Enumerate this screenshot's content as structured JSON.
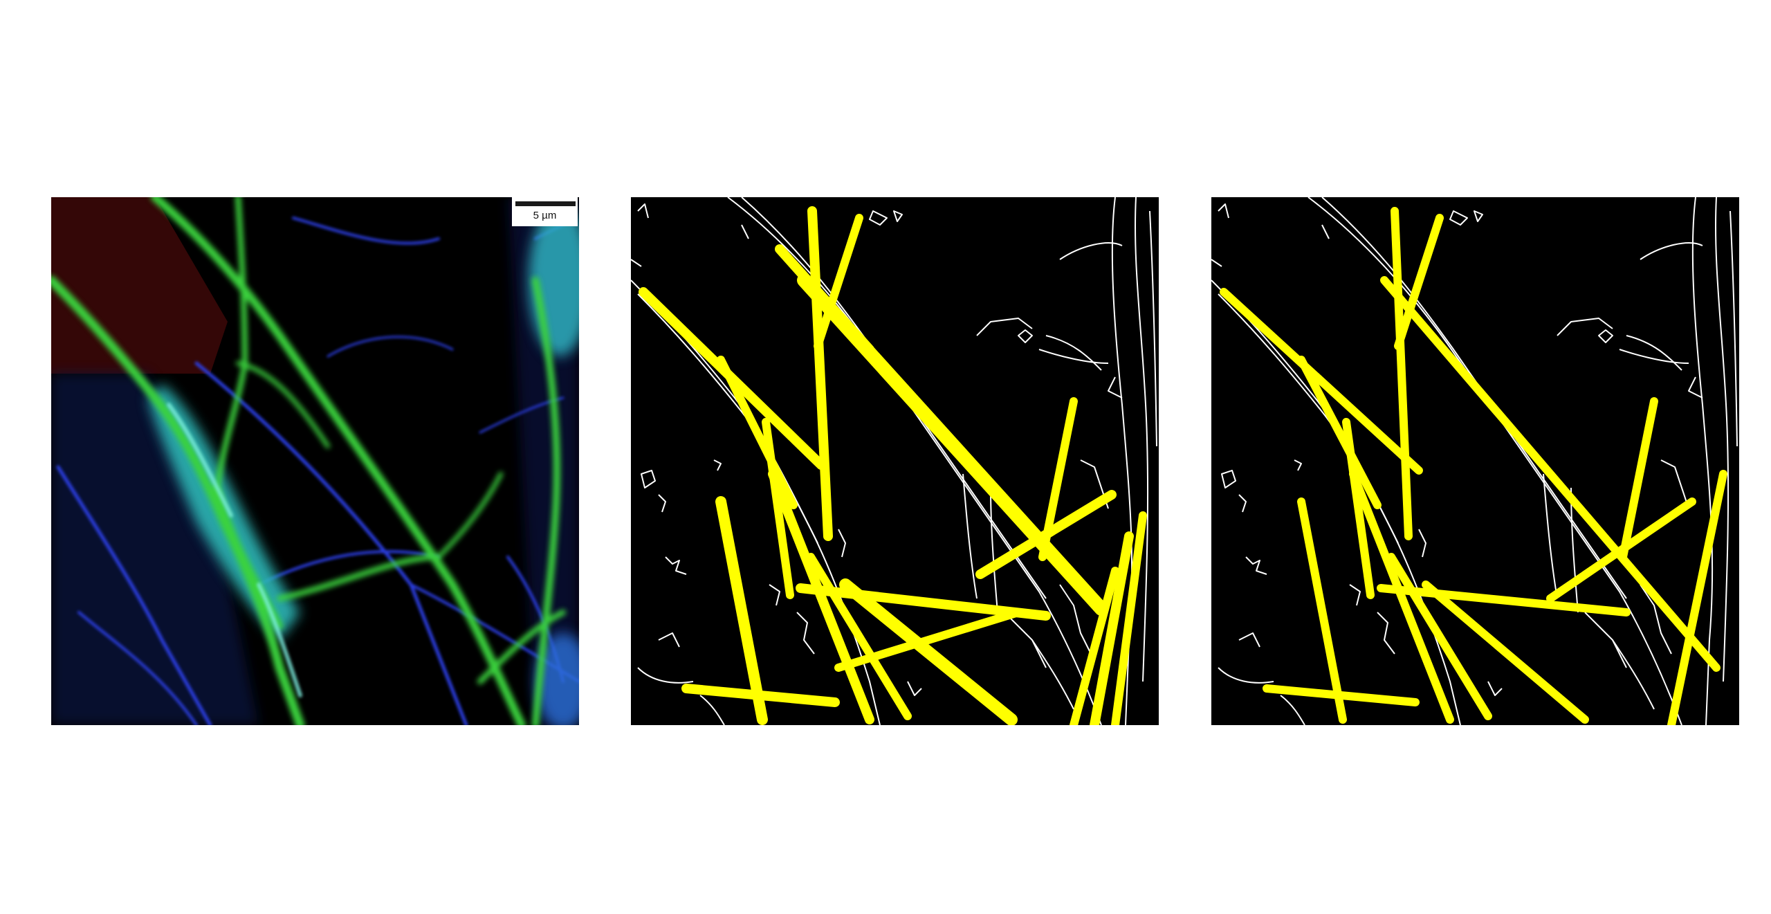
{
  "figure": {
    "panels": [
      {
        "id": "micro",
        "kind": "fluorescence-micrograph"
      },
      {
        "id": "edges-a",
        "kind": "edge-map-with-detected-lines"
      },
      {
        "id": "edges-b",
        "kind": "edge-map-with-detected-lines"
      }
    ],
    "scale_bar": {
      "label": "5 µm"
    },
    "colors": {
      "background": "#ffffff",
      "panel_background": "#000000",
      "neurite_green": "#34c43a",
      "soma_cyan": "#3fd0c8",
      "dendrite_blue": "#2a3fd6",
      "dim_red_region": "#3a0a0a",
      "detected_line_yellow": "#ffff00",
      "edge_white": "#ffffff"
    }
  }
}
